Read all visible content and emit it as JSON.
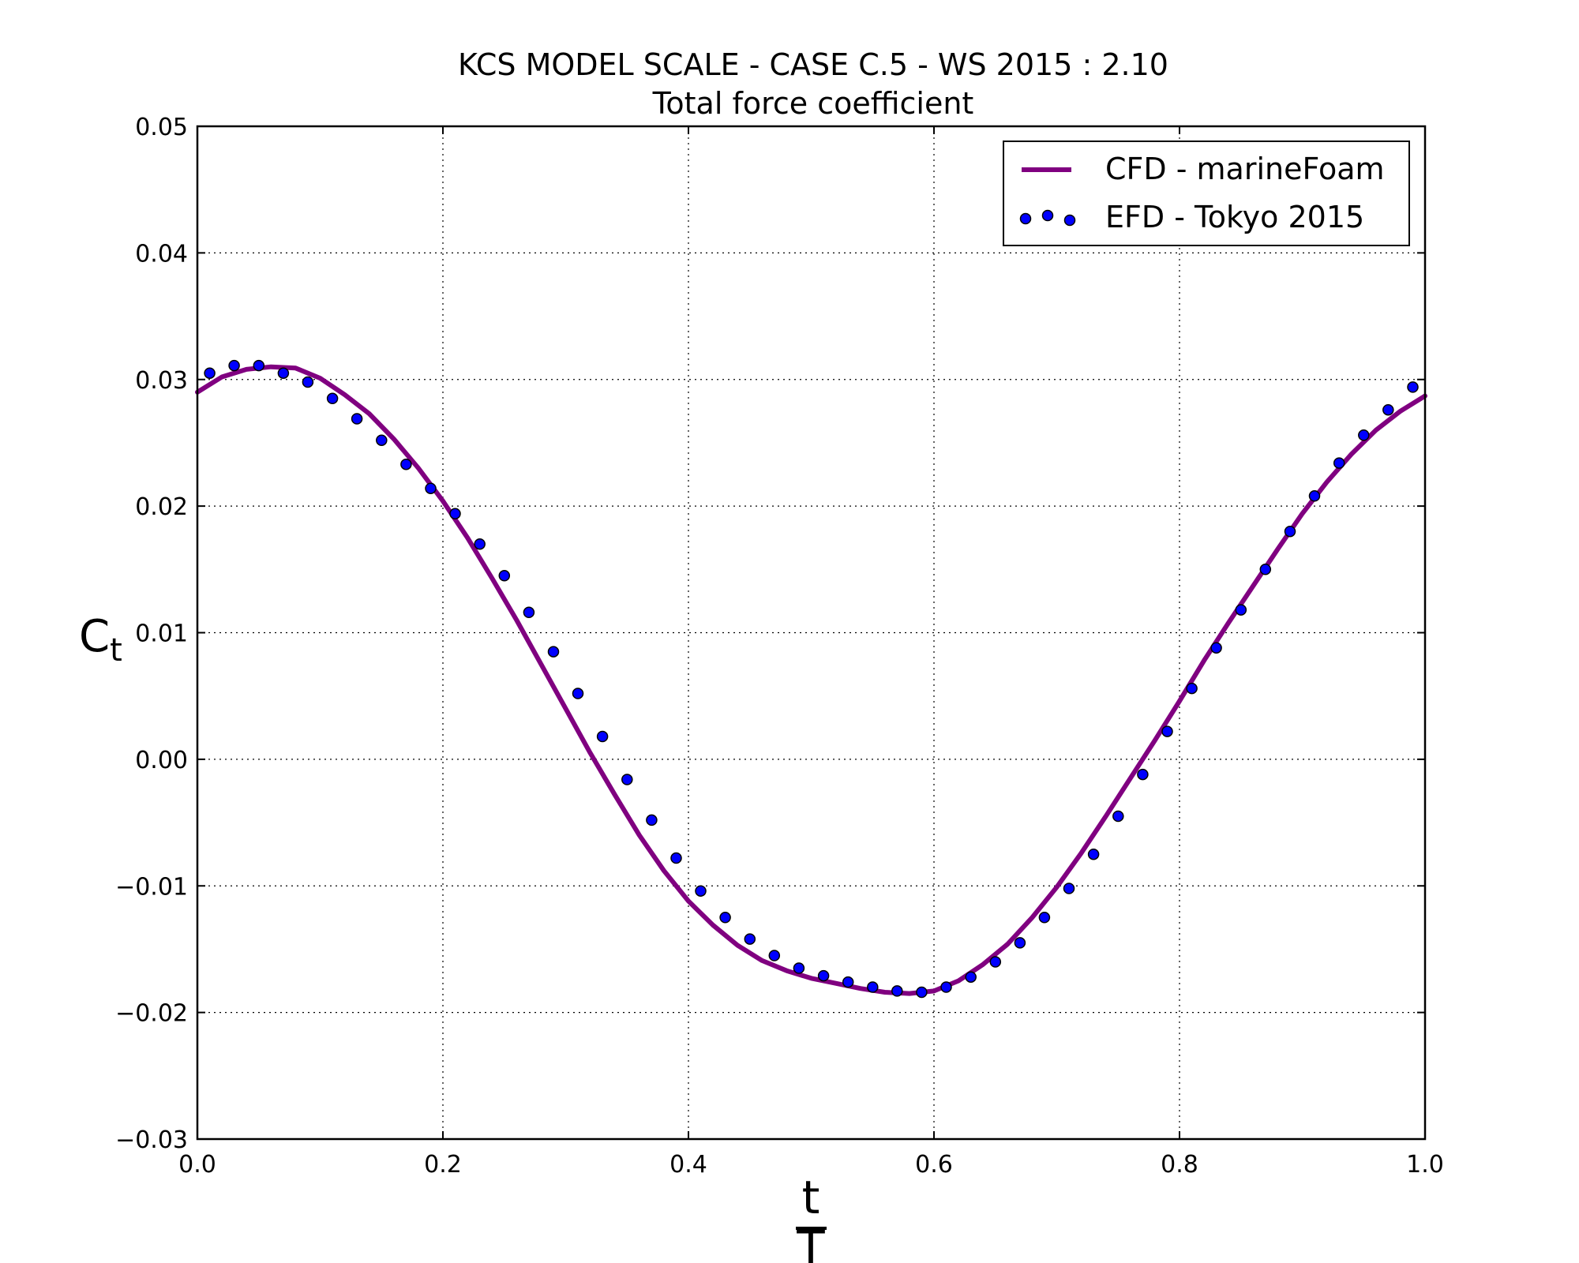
{
  "chart_data": {
    "type": "line",
    "title": "KCS MODEL SCALE - CASE C.5 - WS 2015 : 2.10",
    "subtitle": "Total force coefficient",
    "ylabel_base": "C",
    "ylabel_sub": "t",
    "xlabel_numerator": "t",
    "xlabel_denominator": "T",
    "xlim": [
      0.0,
      1.0
    ],
    "ylim": [
      -0.03,
      0.05
    ],
    "x_ticks": [
      0.0,
      0.2,
      0.4,
      0.6,
      0.8,
      1.0
    ],
    "x_tick_labels": [
      "0.0",
      "0.2",
      "0.4",
      "0.6",
      "0.8",
      "1.0"
    ],
    "y_ticks": [
      -0.03,
      -0.02,
      -0.01,
      0.0,
      0.01,
      0.02,
      0.03,
      0.04,
      0.05
    ],
    "y_tick_labels": [
      "−0.03",
      "−0.02",
      "−0.01",
      "0.00",
      "0.01",
      "0.02",
      "0.03",
      "0.04",
      "0.05"
    ],
    "grid": true,
    "legend_position": "top-right",
    "series": [
      {
        "name": "CFD - marineFoam",
        "style": "line",
        "color": "#800080",
        "x": [
          0.0,
          0.02,
          0.04,
          0.06,
          0.08,
          0.1,
          0.12,
          0.14,
          0.16,
          0.18,
          0.2,
          0.22,
          0.24,
          0.26,
          0.28,
          0.3,
          0.32,
          0.34,
          0.36,
          0.38,
          0.4,
          0.42,
          0.44,
          0.46,
          0.48,
          0.5,
          0.52,
          0.54,
          0.56,
          0.58,
          0.6,
          0.62,
          0.64,
          0.66,
          0.68,
          0.7,
          0.72,
          0.74,
          0.76,
          0.78,
          0.8,
          0.82,
          0.84,
          0.86,
          0.88,
          0.9,
          0.92,
          0.94,
          0.96,
          0.98,
          1.0
        ],
        "y": [
          0.029,
          0.0302,
          0.0308,
          0.031,
          0.0309,
          0.0301,
          0.0288,
          0.0273,
          0.0253,
          0.023,
          0.0204,
          0.0175,
          0.0143,
          0.011,
          0.0075,
          0.004,
          0.0005,
          -0.0028,
          -0.006,
          -0.0088,
          -0.0112,
          -0.0131,
          -0.0147,
          -0.0159,
          -0.0167,
          -0.0173,
          -0.0177,
          -0.0181,
          -0.0184,
          -0.0185,
          -0.0183,
          -0.0175,
          -0.0162,
          -0.0146,
          -0.0125,
          -0.0101,
          -0.0074,
          -0.0045,
          -0.0015,
          0.0015,
          0.0046,
          0.0078,
          0.0108,
          0.0137,
          0.0166,
          0.0194,
          0.0219,
          0.0241,
          0.026,
          0.0275,
          0.0287
        ]
      },
      {
        "name": "EFD - Tokyo 2015",
        "style": "markers",
        "color": "#0000ff",
        "x": [
          0.01,
          0.03,
          0.05,
          0.07,
          0.09,
          0.11,
          0.13,
          0.15,
          0.17,
          0.19,
          0.21,
          0.23,
          0.25,
          0.27,
          0.29,
          0.31,
          0.33,
          0.35,
          0.37,
          0.39,
          0.41,
          0.43,
          0.45,
          0.47,
          0.49,
          0.51,
          0.53,
          0.55,
          0.57,
          0.59,
          0.61,
          0.63,
          0.65,
          0.67,
          0.69,
          0.71,
          0.73,
          0.75,
          0.77,
          0.79,
          0.81,
          0.83,
          0.85,
          0.87,
          0.89,
          0.91,
          0.93,
          0.95,
          0.97,
          0.99
        ],
        "y": [
          0.0305,
          0.0311,
          0.0311,
          0.0305,
          0.0298,
          0.0285,
          0.0269,
          0.0252,
          0.0233,
          0.0214,
          0.0194,
          0.017,
          0.0145,
          0.0116,
          0.0085,
          0.0052,
          0.0018,
          -0.0016,
          -0.0048,
          -0.0078,
          -0.0104,
          -0.0125,
          -0.0142,
          -0.0155,
          -0.0165,
          -0.0171,
          -0.0176,
          -0.018,
          -0.0183,
          -0.0184,
          -0.018,
          -0.0172,
          -0.016,
          -0.0145,
          -0.0125,
          -0.0102,
          -0.0075,
          -0.0045,
          -0.0012,
          0.0022,
          0.0056,
          0.0088,
          0.0118,
          0.015,
          0.018,
          0.0208,
          0.0234,
          0.0256,
          0.0276,
          0.0294
        ]
      }
    ]
  }
}
